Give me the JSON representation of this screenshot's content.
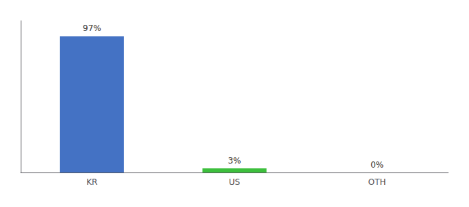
{
  "chart_data": {
    "type": "bar",
    "categories": [
      "KR",
      "US",
      "OTH"
    ],
    "values": [
      97,
      3,
      0
    ],
    "value_labels": [
      "97%",
      "3%",
      "0%"
    ],
    "colors": [
      "#4472c4",
      "#3dbf3d",
      "#4472c4"
    ],
    "data_labels": true,
    "ylim": [
      0,
      108
    ],
    "tick_labels": "x",
    "grid": false
  }
}
